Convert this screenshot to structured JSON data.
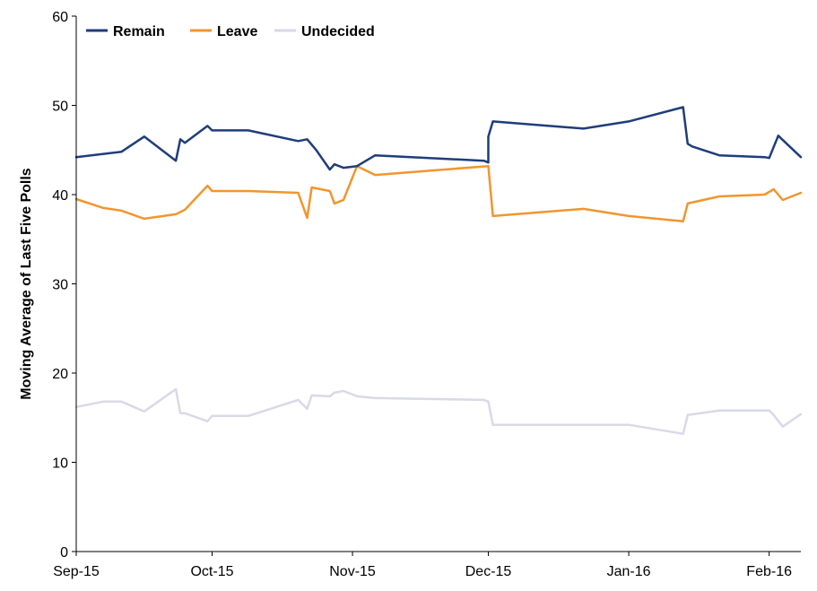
{
  "chart_data": {
    "type": "line",
    "title": "",
    "xlabel": "",
    "ylabel": "Moving Average of Last Five Polls",
    "ylim": [
      0,
      60
    ],
    "yticks": [
      0,
      10,
      20,
      30,
      40,
      50,
      60
    ],
    "xlim": [
      "2015-09-01",
      "2016-02-08"
    ],
    "xticks": [
      {
        "date": "2015-09-01",
        "label": "Sep-15"
      },
      {
        "date": "2015-10-01",
        "label": "Oct-15"
      },
      {
        "date": "2015-11-01",
        "label": "Nov-15"
      },
      {
        "date": "2015-12-01",
        "label": "Dec-15"
      },
      {
        "date": "2016-01-01",
        "label": "Jan-16"
      },
      {
        "date": "2016-02-01",
        "label": "Feb-16"
      }
    ],
    "grid": false,
    "legend": "top-left",
    "series": [
      {
        "name": "Remain",
        "color": "#1f3d7a",
        "points": [
          [
            "2015-09-01",
            44.2
          ],
          [
            "2015-09-11",
            44.8
          ],
          [
            "2015-09-16",
            46.5
          ],
          [
            "2015-09-23",
            43.8
          ],
          [
            "2015-09-24",
            46.2
          ],
          [
            "2015-09-25",
            45.8
          ],
          [
            "2015-09-30",
            47.7
          ],
          [
            "2015-10-01",
            47.2
          ],
          [
            "2015-10-09",
            47.2
          ],
          [
            "2015-10-20",
            46.0
          ],
          [
            "2015-10-22",
            46.2
          ],
          [
            "2015-10-24",
            45.0
          ],
          [
            "2015-10-27",
            42.8
          ],
          [
            "2015-10-28",
            43.4
          ],
          [
            "2015-10-30",
            43.0
          ],
          [
            "2015-11-02",
            43.2
          ],
          [
            "2015-11-06",
            44.4
          ],
          [
            "2015-11-30",
            43.8
          ],
          [
            "2015-11-31",
            43.6
          ],
          [
            "2015-12-01",
            46.5
          ],
          [
            "2015-12-02",
            48.2
          ],
          [
            "2015-12-22",
            47.4
          ],
          [
            "2016-01-01",
            48.2
          ],
          [
            "2016-01-13",
            49.8
          ],
          [
            "2016-01-14",
            45.7
          ],
          [
            "2016-01-15",
            45.4
          ],
          [
            "2016-01-21",
            44.4
          ],
          [
            "2016-01-31",
            44.2
          ],
          [
            "2016-02-01",
            44.1
          ],
          [
            "2016-02-03",
            46.6
          ],
          [
            "2016-02-08",
            44.2
          ]
        ]
      },
      {
        "name": "Leave",
        "color": "#f0962e",
        "points": [
          [
            "2015-09-01",
            39.5
          ],
          [
            "2015-09-07",
            38.5
          ],
          [
            "2015-09-11",
            38.2
          ],
          [
            "2015-09-16",
            37.3
          ],
          [
            "2015-09-23",
            37.8
          ],
          [
            "2015-09-25",
            38.3
          ],
          [
            "2015-09-30",
            41.0
          ],
          [
            "2015-10-01",
            40.4
          ],
          [
            "2015-10-09",
            40.4
          ],
          [
            "2015-10-20",
            40.2
          ],
          [
            "2015-10-22",
            37.4
          ],
          [
            "2015-10-23",
            40.8
          ],
          [
            "2015-10-27",
            40.4
          ],
          [
            "2015-10-28",
            39.0
          ],
          [
            "2015-10-30",
            39.4
          ],
          [
            "2015-11-02",
            43.2
          ],
          [
            "2015-11-06",
            42.2
          ],
          [
            "2015-11-31",
            43.2
          ],
          [
            "2015-12-02",
            37.6
          ],
          [
            "2015-12-22",
            38.4
          ],
          [
            "2016-01-01",
            37.6
          ],
          [
            "2016-01-13",
            37.0
          ],
          [
            "2016-01-14",
            39.0
          ],
          [
            "2016-01-21",
            39.8
          ],
          [
            "2016-01-31",
            40.0
          ],
          [
            "2016-02-02",
            40.6
          ],
          [
            "2016-02-04",
            39.4
          ],
          [
            "2016-02-08",
            40.2
          ]
        ]
      },
      {
        "name": "Undecided",
        "color": "#d9d9e8",
        "points": [
          [
            "2015-09-01",
            16.2
          ],
          [
            "2015-09-07",
            16.8
          ],
          [
            "2015-09-11",
            16.8
          ],
          [
            "2015-09-16",
            15.7
          ],
          [
            "2015-09-23",
            18.2
          ],
          [
            "2015-09-24",
            15.5
          ],
          [
            "2015-09-25",
            15.5
          ],
          [
            "2015-09-30",
            14.6
          ],
          [
            "2015-10-01",
            15.2
          ],
          [
            "2015-10-09",
            15.2
          ],
          [
            "2015-10-20",
            17.0
          ],
          [
            "2015-10-22",
            16.0
          ],
          [
            "2015-10-23",
            17.5
          ],
          [
            "2015-10-27",
            17.4
          ],
          [
            "2015-10-28",
            17.8
          ],
          [
            "2015-10-30",
            18.0
          ],
          [
            "2015-11-02",
            17.4
          ],
          [
            "2015-11-06",
            17.2
          ],
          [
            "2015-11-30",
            17.0
          ],
          [
            "2015-11-31",
            16.8
          ],
          [
            "2015-12-02",
            14.2
          ],
          [
            "2015-12-22",
            14.2
          ],
          [
            "2016-01-01",
            14.2
          ],
          [
            "2016-01-13",
            13.2
          ],
          [
            "2016-01-14",
            15.3
          ],
          [
            "2016-01-21",
            15.8
          ],
          [
            "2016-02-01",
            15.8
          ],
          [
            "2016-02-02",
            15.3
          ],
          [
            "2016-02-04",
            14.0
          ],
          [
            "2016-02-08",
            15.4
          ]
        ]
      }
    ]
  }
}
